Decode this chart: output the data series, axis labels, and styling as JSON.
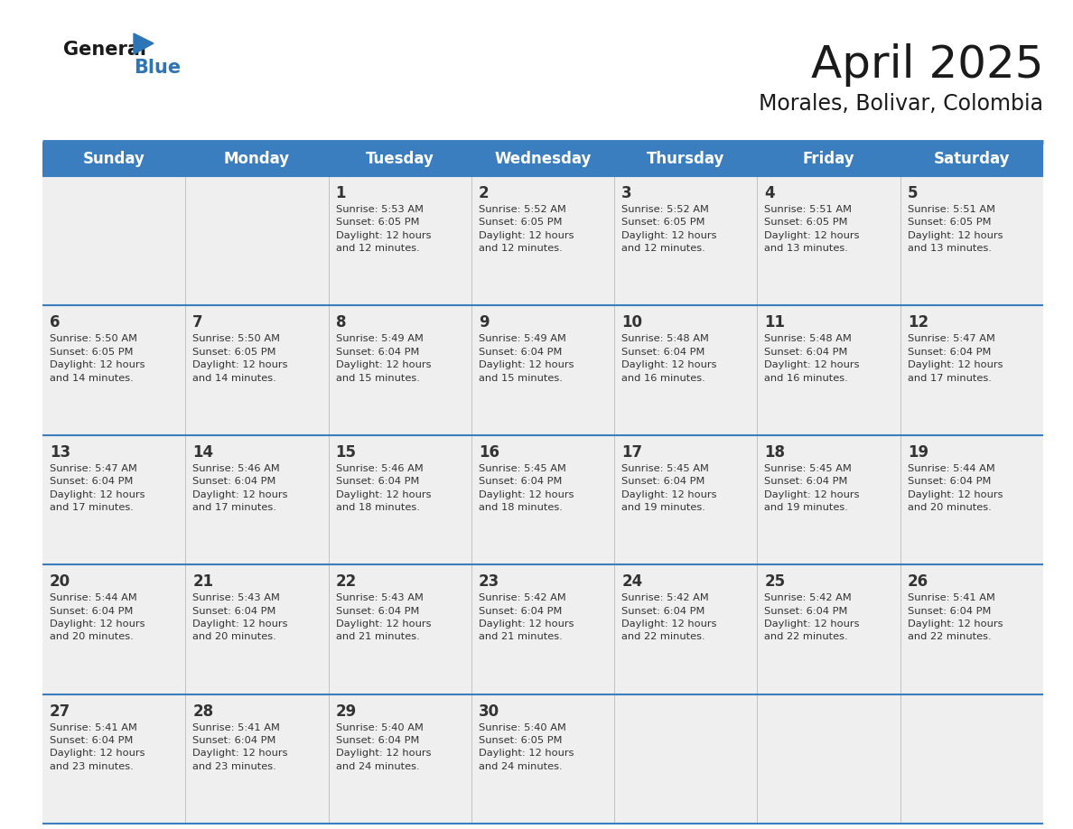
{
  "title": "April 2025",
  "subtitle": "Morales, Bolivar, Colombia",
  "days_of_week": [
    "Sunday",
    "Monday",
    "Tuesday",
    "Wednesday",
    "Thursday",
    "Friday",
    "Saturday"
  ],
  "header_bg": "#3A7EBF",
  "header_text": "#FFFFFF",
  "row_bg": "#EFEFEF",
  "cell_text_color": "#333333",
  "day_num_color": "#333333",
  "separator_color": "#3A7EBF",
  "title_color": "#1a1a1a",
  "subtitle_color": "#1a1a1a",
  "logo_general_color": "#1a1a1a",
  "logo_blue_color": "#2E75B6",
  "calendar_data": [
    [
      {
        "day": null,
        "text": ""
      },
      {
        "day": null,
        "text": ""
      },
      {
        "day": 1,
        "text": "Sunrise: 5:53 AM\nSunset: 6:05 PM\nDaylight: 12 hours\nand 12 minutes."
      },
      {
        "day": 2,
        "text": "Sunrise: 5:52 AM\nSunset: 6:05 PM\nDaylight: 12 hours\nand 12 minutes."
      },
      {
        "day": 3,
        "text": "Sunrise: 5:52 AM\nSunset: 6:05 PM\nDaylight: 12 hours\nand 12 minutes."
      },
      {
        "day": 4,
        "text": "Sunrise: 5:51 AM\nSunset: 6:05 PM\nDaylight: 12 hours\nand 13 minutes."
      },
      {
        "day": 5,
        "text": "Sunrise: 5:51 AM\nSunset: 6:05 PM\nDaylight: 12 hours\nand 13 minutes."
      }
    ],
    [
      {
        "day": 6,
        "text": "Sunrise: 5:50 AM\nSunset: 6:05 PM\nDaylight: 12 hours\nand 14 minutes."
      },
      {
        "day": 7,
        "text": "Sunrise: 5:50 AM\nSunset: 6:05 PM\nDaylight: 12 hours\nand 14 minutes."
      },
      {
        "day": 8,
        "text": "Sunrise: 5:49 AM\nSunset: 6:04 PM\nDaylight: 12 hours\nand 15 minutes."
      },
      {
        "day": 9,
        "text": "Sunrise: 5:49 AM\nSunset: 6:04 PM\nDaylight: 12 hours\nand 15 minutes."
      },
      {
        "day": 10,
        "text": "Sunrise: 5:48 AM\nSunset: 6:04 PM\nDaylight: 12 hours\nand 16 minutes."
      },
      {
        "day": 11,
        "text": "Sunrise: 5:48 AM\nSunset: 6:04 PM\nDaylight: 12 hours\nand 16 minutes."
      },
      {
        "day": 12,
        "text": "Sunrise: 5:47 AM\nSunset: 6:04 PM\nDaylight: 12 hours\nand 17 minutes."
      }
    ],
    [
      {
        "day": 13,
        "text": "Sunrise: 5:47 AM\nSunset: 6:04 PM\nDaylight: 12 hours\nand 17 minutes."
      },
      {
        "day": 14,
        "text": "Sunrise: 5:46 AM\nSunset: 6:04 PM\nDaylight: 12 hours\nand 17 minutes."
      },
      {
        "day": 15,
        "text": "Sunrise: 5:46 AM\nSunset: 6:04 PM\nDaylight: 12 hours\nand 18 minutes."
      },
      {
        "day": 16,
        "text": "Sunrise: 5:45 AM\nSunset: 6:04 PM\nDaylight: 12 hours\nand 18 minutes."
      },
      {
        "day": 17,
        "text": "Sunrise: 5:45 AM\nSunset: 6:04 PM\nDaylight: 12 hours\nand 19 minutes."
      },
      {
        "day": 18,
        "text": "Sunrise: 5:45 AM\nSunset: 6:04 PM\nDaylight: 12 hours\nand 19 minutes."
      },
      {
        "day": 19,
        "text": "Sunrise: 5:44 AM\nSunset: 6:04 PM\nDaylight: 12 hours\nand 20 minutes."
      }
    ],
    [
      {
        "day": 20,
        "text": "Sunrise: 5:44 AM\nSunset: 6:04 PM\nDaylight: 12 hours\nand 20 minutes."
      },
      {
        "day": 21,
        "text": "Sunrise: 5:43 AM\nSunset: 6:04 PM\nDaylight: 12 hours\nand 20 minutes."
      },
      {
        "day": 22,
        "text": "Sunrise: 5:43 AM\nSunset: 6:04 PM\nDaylight: 12 hours\nand 21 minutes."
      },
      {
        "day": 23,
        "text": "Sunrise: 5:42 AM\nSunset: 6:04 PM\nDaylight: 12 hours\nand 21 minutes."
      },
      {
        "day": 24,
        "text": "Sunrise: 5:42 AM\nSunset: 6:04 PM\nDaylight: 12 hours\nand 22 minutes."
      },
      {
        "day": 25,
        "text": "Sunrise: 5:42 AM\nSunset: 6:04 PM\nDaylight: 12 hours\nand 22 minutes."
      },
      {
        "day": 26,
        "text": "Sunrise: 5:41 AM\nSunset: 6:04 PM\nDaylight: 12 hours\nand 22 minutes."
      }
    ],
    [
      {
        "day": 27,
        "text": "Sunrise: 5:41 AM\nSunset: 6:04 PM\nDaylight: 12 hours\nand 23 minutes."
      },
      {
        "day": 28,
        "text": "Sunrise: 5:41 AM\nSunset: 6:04 PM\nDaylight: 12 hours\nand 23 minutes."
      },
      {
        "day": 29,
        "text": "Sunrise: 5:40 AM\nSunset: 6:04 PM\nDaylight: 12 hours\nand 24 minutes."
      },
      {
        "day": 30,
        "text": "Sunrise: 5:40 AM\nSunset: 6:05 PM\nDaylight: 12 hours\nand 24 minutes."
      },
      {
        "day": null,
        "text": ""
      },
      {
        "day": null,
        "text": ""
      },
      {
        "day": null,
        "text": ""
      }
    ]
  ]
}
